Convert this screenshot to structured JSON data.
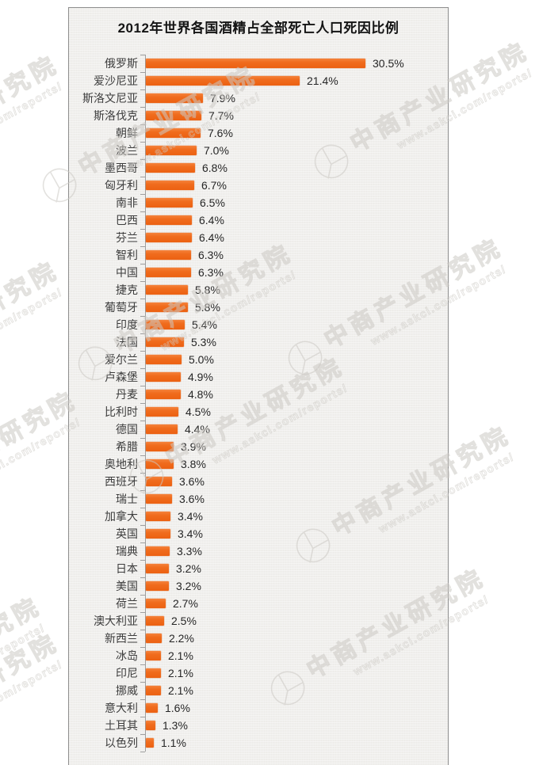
{
  "title": "2012年世界各国酒精占全部死亡人口死因比例",
  "watermark": {
    "brand": "中商产业研究院",
    "url": "www.askci.com/reports/",
    "logo_icon": "askci-pie-logo-icon"
  },
  "colors": {
    "bar": "#f06c1d",
    "panel_bg": "#f0efed",
    "panel_border": "#8f8f8f",
    "axis": "#9e9e9e",
    "category_label": "#3d3d3d",
    "value_label": "#262626",
    "title": "#141414",
    "watermark": "#ccc9c4"
  },
  "chart_data": {
    "type": "bar",
    "orientation": "horizontal",
    "title": "2012年世界各国酒精占全部死亡人口死因比例",
    "xlabel": "",
    "ylabel": "",
    "value_suffix": "%",
    "xlim": [
      0,
      33
    ],
    "grid": false,
    "legend": false,
    "categories": [
      "俄罗斯",
      "爱沙尼亚",
      "斯洛文尼亚",
      "斯洛伐克",
      "朝鲜",
      "波兰",
      "墨西哥",
      "匈牙利",
      "南非",
      "巴西",
      "芬兰",
      "智利",
      "中国",
      "捷克",
      "葡萄牙",
      "印度",
      "法国",
      "爱尔兰",
      "卢森堡",
      "丹麦",
      "比利时",
      "德国",
      "希腊",
      "奥地利",
      "西班牙",
      "瑞士",
      "加拿大",
      "英国",
      "瑞典",
      "日本",
      "美国",
      "荷兰",
      "澳大利亚",
      "新西兰",
      "冰岛",
      "印尼",
      "挪威",
      "意大利",
      "土耳其",
      "以色列"
    ],
    "values": [
      30.5,
      21.4,
      7.9,
      7.7,
      7.6,
      7.0,
      6.8,
      6.7,
      6.5,
      6.4,
      6.4,
      6.3,
      6.3,
      5.8,
      5.8,
      5.4,
      5.3,
      5.0,
      4.9,
      4.8,
      4.5,
      4.4,
      3.9,
      3.8,
      3.6,
      3.6,
      3.4,
      3.4,
      3.3,
      3.2,
      3.2,
      2.7,
      2.5,
      2.2,
      2.1,
      2.1,
      2.1,
      1.6,
      1.3,
      1.1
    ]
  }
}
